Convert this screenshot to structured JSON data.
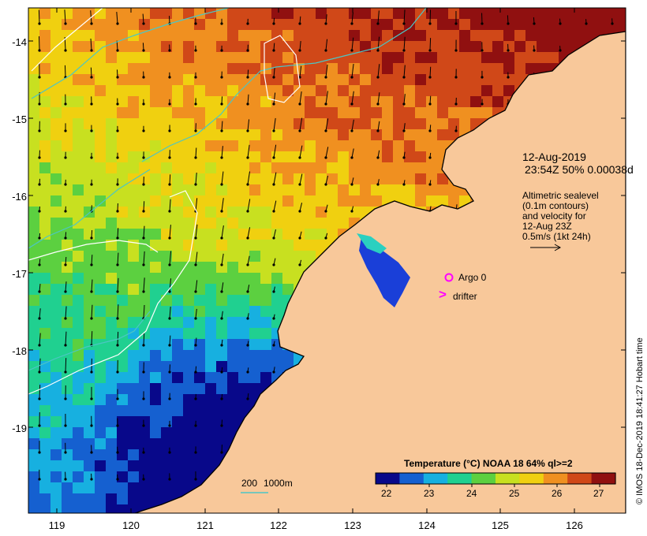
{
  "map": {
    "y_axis_labels": [
      "-14",
      "-15",
      "-16",
      "-17",
      "-18",
      "-19"
    ],
    "x_axis_labels": [
      "119",
      "120",
      "121",
      "122",
      "123",
      "124",
      "125",
      "126"
    ],
    "colors": {
      "land": "#f8c89a",
      "coast": "#000000",
      "isobath_200": "#4cc6c4",
      "isobath_1000": "#ffffff",
      "marker": "#ff00ff"
    }
  },
  "info": {
    "date": "12-Aug-2019",
    "time_line": "23:54Z  50% 0.00038d",
    "altimetry_lines": [
      "Altimetric sealevel",
      "(0.1m contours)",
      "and velocity for",
      "12-Aug 23Z",
      "0.5m/s (1kt 24h)"
    ]
  },
  "markers": {
    "argo_label": "Argo 0",
    "drifter_symbol": ">",
    "drifter_label": "drifter"
  },
  "isobath_legend": {
    "label_200": "200",
    "label_1000": "1000m"
  },
  "colorbar": {
    "title": "Temperature (°C) NOAA 18 64% ql>=2",
    "tick_labels": [
      "22",
      "23",
      "24",
      "25",
      "26",
      "27"
    ],
    "colors": [
      "#08088a",
      "#1560d0",
      "#17b0e0",
      "#20d090",
      "#5cd040",
      "#c8e020",
      "#f0d010",
      "#f09020",
      "#d04818",
      "#901010"
    ]
  },
  "credit": "© IMOS 18-Dec-2019 18:41:27 Hobart time"
}
